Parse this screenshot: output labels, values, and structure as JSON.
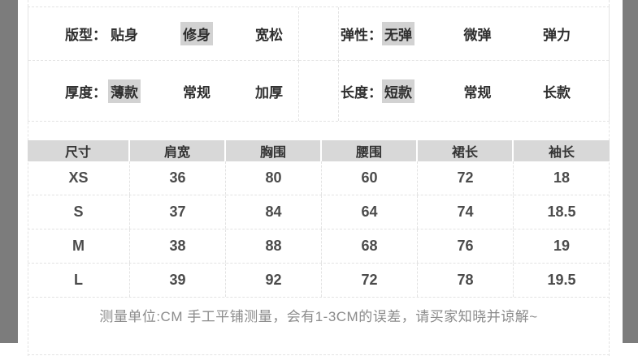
{
  "colors": {
    "side_bar": "#7c7c7c",
    "header_bg": "#d8d8d8",
    "highlight_bg": "#d2d2d2",
    "text_dark": "#2e2e2e",
    "text_number": "#4b4b4b",
    "note_gray": "#8b8b8b",
    "dashed_line": "#e3e3e3"
  },
  "attributes": {
    "rows": [
      {
        "left": {
          "label": "版型：",
          "options": [
            {
              "text": "贴身",
              "selected": false
            },
            {
              "text": "修身",
              "selected": true
            },
            {
              "text": "宽松",
              "selected": false
            }
          ]
        },
        "right": {
          "label": "弹性：",
          "options": [
            {
              "text": "无弹",
              "selected": true
            },
            {
              "text": "微弹",
              "selected": false
            },
            {
              "text": "弹力",
              "selected": false
            }
          ]
        }
      },
      {
        "left": {
          "label": "厚度：",
          "options": [
            {
              "text": "薄款",
              "selected": true
            },
            {
              "text": "常规",
              "selected": false
            },
            {
              "text": "加厚",
              "selected": false
            }
          ]
        },
        "right": {
          "label": "长度：",
          "options": [
            {
              "text": "短款",
              "selected": true
            },
            {
              "text": "常规",
              "selected": false
            },
            {
              "text": "长款",
              "selected": false
            }
          ]
        }
      }
    ]
  },
  "size_table": {
    "headers": [
      "尺寸",
      "肩宽",
      "胸围",
      "腰围",
      "裙长",
      "袖长"
    ],
    "rows": [
      [
        "XS",
        "36",
        "80",
        "60",
        "72",
        "18"
      ],
      [
        "S",
        "37",
        "84",
        "64",
        "74",
        "18.5"
      ],
      [
        "M",
        "38",
        "88",
        "68",
        "76",
        "19"
      ],
      [
        "L",
        "39",
        "92",
        "72",
        "78",
        "19.5"
      ]
    ],
    "note": "测量单位:CM 手工平铺测量，会有1-3CM的误差，请买家知晓并谅解~"
  }
}
